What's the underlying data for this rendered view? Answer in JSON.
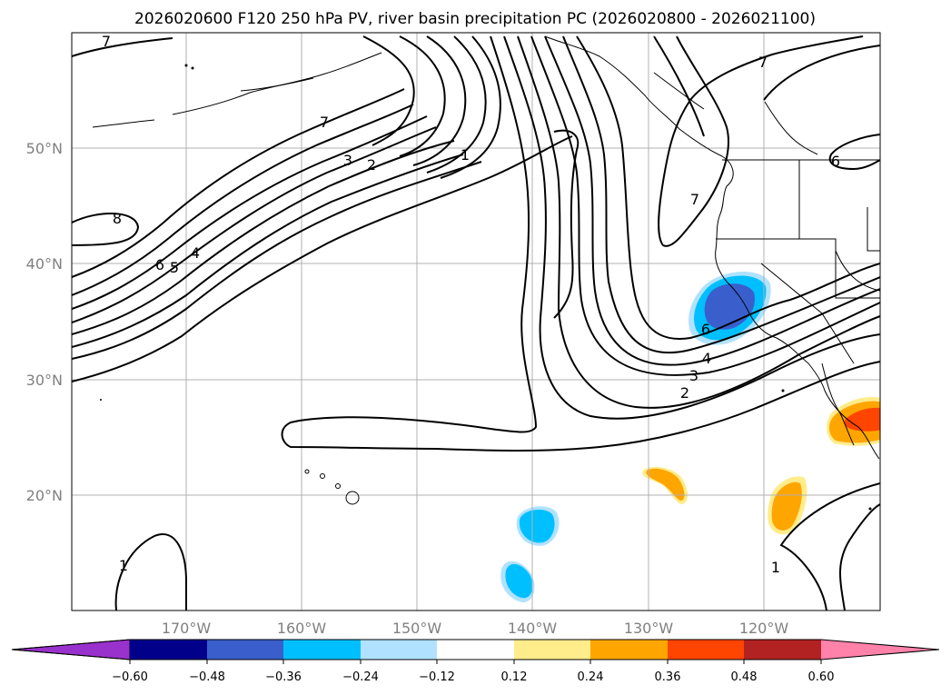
{
  "title": "2026020600 F120 250 hPa PV, river basin precipitation PC (2026020800 - 2026021100)",
  "map": {
    "lon_ticks": [
      "170°W",
      "160°W",
      "150°W",
      "140°W",
      "130°W",
      "120°W"
    ],
    "lat_ticks": [
      "50°N",
      "40°N",
      "30°N",
      "20°N"
    ],
    "lon_range": [
      -180,
      -110
    ],
    "lat_range": [
      10,
      60
    ],
    "grid": true,
    "contour_labels": [
      {
        "text": "7",
        "name": "contour-label-7-northwest"
      },
      {
        "text": "7",
        "name": "contour-label-7-mid"
      },
      {
        "text": "3",
        "name": "contour-label-3"
      },
      {
        "text": "2",
        "name": "contour-label-2"
      },
      {
        "text": "1",
        "name": "contour-label-1"
      },
      {
        "text": "8",
        "name": "contour-label-8"
      },
      {
        "text": "6",
        "name": "contour-label-6-west"
      },
      {
        "text": "5",
        "name": "contour-label-5-west"
      },
      {
        "text": "4",
        "name": "contour-label-4-west"
      },
      {
        "text": "7",
        "name": "contour-label-7-northeast"
      },
      {
        "text": "7",
        "name": "contour-label-7-coast"
      },
      {
        "text": "6",
        "name": "contour-label-6-east"
      },
      {
        "text": "6",
        "name": "contour-label-6-california"
      },
      {
        "text": "4",
        "name": "contour-label-4-east"
      },
      {
        "text": "3",
        "name": "contour-label-3-east"
      },
      {
        "text": "2",
        "name": "contour-label-2-east"
      },
      {
        "text": "1",
        "name": "contour-label-1-southwest"
      },
      {
        "text": "1",
        "name": "contour-label-1-southeast"
      }
    ],
    "colors": {
      "shading_blue_dark": "#3a5fcd",
      "shading_blue": "#00bfff",
      "shading_blue_light": "#b0e2ff",
      "shading_yellow": "#ffec8b",
      "shading_orange": "#ffa500",
      "shading_red": "#ff4500"
    }
  },
  "colorbar": {
    "ticks": [
      "−0.60",
      "−0.48",
      "−0.36",
      "−0.24",
      "−0.12",
      "0.12",
      "0.24",
      "0.36",
      "0.48",
      "0.60"
    ],
    "colors": [
      "#9932cc",
      "#00008b",
      "#3a5fcd",
      "#00bfff",
      "#b0e2ff",
      "#ffffff",
      "#ffec8b",
      "#ffa500",
      "#ff4500",
      "#b22222",
      "#ff82ab"
    ]
  }
}
